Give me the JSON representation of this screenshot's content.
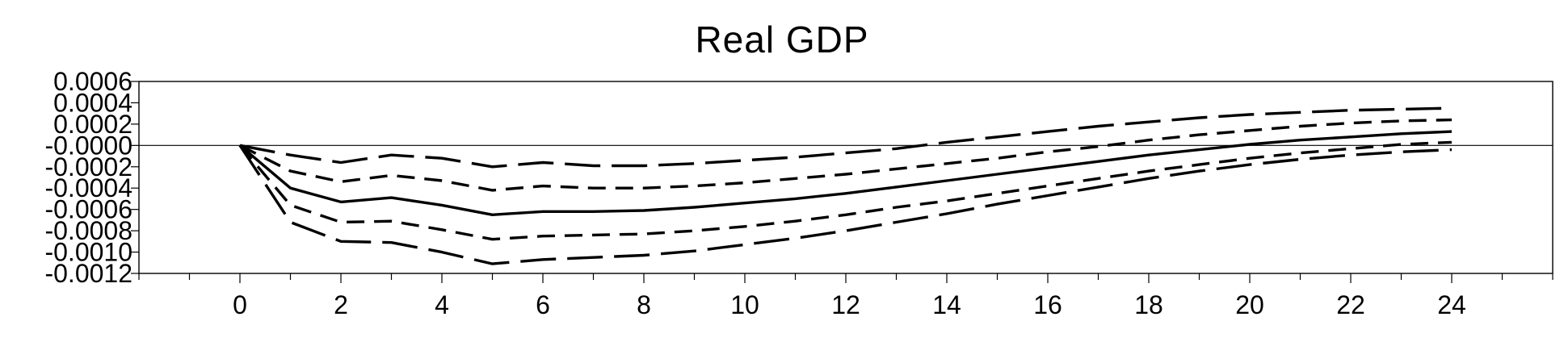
{
  "chart_data": {
    "type": "line",
    "title": "Real GDP",
    "xlabel": "",
    "ylabel": "",
    "xlim": [
      -2,
      26
    ],
    "ylim": [
      -0.0012,
      0.0006
    ],
    "x_ticks": [
      0,
      2,
      4,
      6,
      8,
      10,
      12,
      14,
      16,
      18,
      20,
      22,
      24
    ],
    "x_tick_labels": [
      "0",
      "2",
      "4",
      "6",
      "8",
      "10",
      "12",
      "14",
      "16",
      "18",
      "20",
      "22",
      "24"
    ],
    "y_ticks": [
      0.0006,
      0.0004,
      0.0002,
      0.0,
      -0.0002,
      -0.0004,
      -0.0006,
      -0.0008,
      -0.001,
      -0.0012
    ],
    "y_tick_labels": [
      "0.0006",
      "0.0004",
      "0.0002",
      "-0.0000",
      "-0.0002",
      "-0.0004",
      "-0.0006",
      "-0.0008",
      "-0.0010",
      "-0.0012"
    ],
    "zero_line": true,
    "grid": false,
    "x": [
      0,
      1,
      2,
      3,
      4,
      5,
      6,
      7,
      8,
      9,
      10,
      11,
      12,
      13,
      14,
      15,
      16,
      17,
      18,
      19,
      20,
      21,
      22,
      23,
      24
    ],
    "series": [
      {
        "name": "upper-outer-band",
        "style": "long-dash",
        "values": [
          0.0,
          -9e-05,
          -0.00016,
          -9e-05,
          -0.00012,
          -0.0002,
          -0.00016,
          -0.00019,
          -0.00019,
          -0.00017,
          -0.00014,
          -0.00011,
          -7e-05,
          -3e-05,
          3e-05,
          8e-05,
          0.00013,
          0.00018,
          0.00022,
          0.00026,
          0.00029,
          0.00031,
          0.00033,
          0.00034,
          0.00035
        ]
      },
      {
        "name": "upper-inner-band",
        "style": "short-dash",
        "values": [
          0.0,
          -0.00024,
          -0.00034,
          -0.00028,
          -0.00033,
          -0.00042,
          -0.00038,
          -0.0004,
          -0.0004,
          -0.00038,
          -0.00035,
          -0.00031,
          -0.00027,
          -0.00022,
          -0.00017,
          -0.00012,
          -6e-05,
          -1e-05,
          5e-05,
          0.0001,
          0.00014,
          0.00018,
          0.00021,
          0.00023,
          0.00024
        ]
      },
      {
        "name": "point-estimate",
        "style": "solid",
        "values": [
          0.0,
          -0.0004,
          -0.00053,
          -0.00049,
          -0.00056,
          -0.00065,
          -0.00062,
          -0.00062,
          -0.00061,
          -0.00058,
          -0.00054,
          -0.0005,
          -0.00045,
          -0.00039,
          -0.00033,
          -0.00027,
          -0.00021,
          -0.00015,
          -9e-05,
          -4e-05,
          1e-05,
          5e-05,
          8e-05,
          0.00011,
          0.00013
        ]
      },
      {
        "name": "lower-inner-band",
        "style": "short-dash",
        "values": [
          0.0,
          -0.00056,
          -0.00072,
          -0.00071,
          -0.00079,
          -0.00088,
          -0.00085,
          -0.00084,
          -0.00083,
          -0.0008,
          -0.00076,
          -0.00071,
          -0.00065,
          -0.00058,
          -0.00052,
          -0.00045,
          -0.00038,
          -0.00031,
          -0.00024,
          -0.00018,
          -0.00012,
          -7e-05,
          -3e-05,
          1e-05,
          3e-05
        ]
      },
      {
        "name": "lower-outer-band",
        "style": "long-dash",
        "values": [
          0.0,
          -0.00072,
          -0.0009,
          -0.00091,
          -0.001,
          -0.00111,
          -0.00107,
          -0.00105,
          -0.00103,
          -0.00099,
          -0.00093,
          -0.00087,
          -0.0008,
          -0.00072,
          -0.00064,
          -0.00055,
          -0.00047,
          -0.00039,
          -0.00031,
          -0.00024,
          -0.00018,
          -0.00013,
          -9e-05,
          -6e-05,
          -4e-05
        ]
      }
    ],
    "colors": {
      "line": "#000000",
      "background": "#ffffff"
    }
  }
}
